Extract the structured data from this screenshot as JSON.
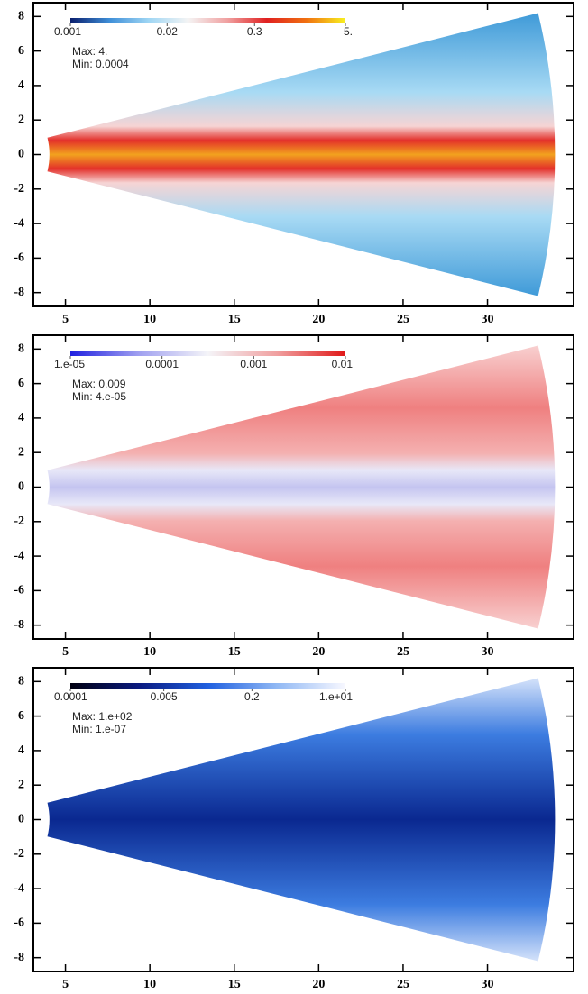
{
  "chart_data": [
    {
      "type": "heatmap",
      "xlim": [
        3.1,
        35.1
      ],
      "ylim": [
        -8.8,
        8.8
      ],
      "xticks": [
        5,
        10,
        15,
        20,
        25,
        30
      ],
      "yticks": [
        -8,
        -6,
        -4,
        -2,
        0,
        2,
        4,
        6,
        8
      ],
      "colorbar": {
        "log": true,
        "clim": [
          0.001,
          5
        ],
        "colormap": [
          "#0a1f6e",
          "#3f8fd8",
          "#9fd6f4",
          "#f4f4f4",
          "#f0a0a0",
          "#e02020",
          "#f07010",
          "#f8f020"
        ],
        "ticks": [
          0.001,
          0.02,
          0.3,
          {
            "value": 5,
            "label": "5."
          }
        ]
      },
      "annotations": [
        "Max:  4.",
        "Min:  0.0004"
      ]
    },
    {
      "type": "heatmap",
      "xlim": [
        3.1,
        35.1
      ],
      "ylim": [
        -8.8,
        8.8
      ],
      "xticks": [
        5,
        10,
        15,
        20,
        25,
        30
      ],
      "yticks": [
        -8,
        -6,
        -4,
        -2,
        0,
        2,
        4,
        6,
        8
      ],
      "colorbar": {
        "log": true,
        "clim": [
          1e-05,
          0.01
        ],
        "colormap": [
          "#2020e0",
          "#a0a0f0",
          "#f4f4f8",
          "#f0a0a0",
          "#e01818"
        ],
        "ticks": [
          {
            "value": 1e-05,
            "label": "1.e-05"
          },
          0.0001,
          0.001,
          0.01
        ]
      },
      "annotations": [
        "Max:  0.009",
        "Min:  4.e-05"
      ]
    },
    {
      "type": "heatmap",
      "xlim": [
        3.1,
        35.1
      ],
      "ylim": [
        -8.8,
        8.8
      ],
      "xticks": [
        5,
        10,
        15,
        20,
        25,
        30
      ],
      "yticks": [
        -8,
        -6,
        -4,
        -2,
        0,
        2,
        4,
        6,
        8
      ],
      "colorbar": {
        "log": true,
        "clim": [
          0.0001,
          10
        ],
        "colormap": [
          "#000010",
          "#0a1a80",
          "#2060e0",
          "#90b8f4",
          "#f8f8ff"
        ],
        "ticks": [
          {
            "value": 0.0001,
            "label": "0.0001"
          },
          0.005,
          0.2,
          {
            "value": 10,
            "label": "1.e+01"
          }
        ]
      },
      "annotations": [
        "Max:  1.e+02",
        "Min:  1.e-07"
      ]
    }
  ]
}
